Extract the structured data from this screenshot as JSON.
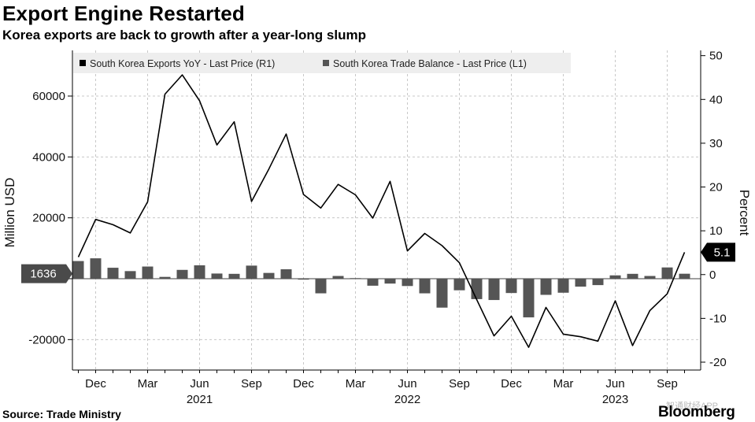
{
  "title": "Export Engine Restarted",
  "subtitle": "Korea exports are back to growth after a year-long slump",
  "source": "Source: Trade Ministry",
  "brand": "Bloomberg",
  "watermark": "智通财经APP",
  "chart_data": {
    "type": "bar+line",
    "title": "Export Engine Restarted",
    "subtitle": "Korea exports are back to growth after a year-long slump",
    "months": [
      "2020-11",
      "2020-12",
      "2021-01",
      "2021-02",
      "2021-03",
      "2021-04",
      "2021-05",
      "2021-06",
      "2021-07",
      "2021-08",
      "2021-09",
      "2021-10",
      "2021-11",
      "2021-12",
      "2022-01",
      "2022-02",
      "2022-03",
      "2022-04",
      "2022-05",
      "2022-06",
      "2022-07",
      "2022-08",
      "2022-09",
      "2022-10",
      "2022-11",
      "2022-12",
      "2023-01",
      "2023-02",
      "2023-03",
      "2023-04",
      "2023-05",
      "2023-06",
      "2023-07",
      "2023-08",
      "2023-09",
      "2023-10"
    ],
    "x_tick_labels": [
      {
        "month": "2020-12",
        "label": "Dec"
      },
      {
        "month": "2021-03",
        "label": "Mar"
      },
      {
        "month": "2021-06",
        "label": "Jun"
      },
      {
        "month": "2021-09",
        "label": "Sep"
      },
      {
        "month": "2021-12",
        "label": "Dec"
      },
      {
        "month": "2022-03",
        "label": "Mar"
      },
      {
        "month": "2022-06",
        "label": "Jun"
      },
      {
        "month": "2022-09",
        "label": "Sep"
      },
      {
        "month": "2022-12",
        "label": "Dec"
      },
      {
        "month": "2023-03",
        "label": "Mar"
      },
      {
        "month": "2023-06",
        "label": "Jun"
      },
      {
        "month": "2023-09",
        "label": "Sep"
      }
    ],
    "year_labels": [
      {
        "month": "2021-06",
        "label": "2021"
      },
      {
        "month": "2022-06",
        "label": "2022"
      },
      {
        "month": "2023-06",
        "label": "2023"
      }
    ],
    "left_axis": {
      "label": "Million USD",
      "range": [
        -30000,
        75000
      ],
      "ticks": [
        -20000,
        0,
        20000,
        40000,
        60000
      ],
      "tick_labels": [
        "-20000",
        "0",
        "20000",
        "40000",
        "60000"
      ]
    },
    "right_axis": {
      "label": "Percent",
      "range": [
        -21.8,
        51.2
      ],
      "ticks": [
        -20,
        -10,
        0,
        10,
        20,
        30,
        40,
        50
      ],
      "tick_labels": [
        "-20",
        "-10",
        "0",
        "10",
        "20",
        "30",
        "40",
        "50"
      ]
    },
    "series": [
      {
        "name": "South Korea Exports YoY - Last Price (R1)",
        "type": "line",
        "axis": "right",
        "color": "#000000",
        "values": [
          4,
          12.6,
          11.4,
          9.5,
          16.6,
          41.2,
          45.6,
          39.7,
          29.6,
          34.9,
          16.7,
          24.1,
          32.1,
          18.3,
          15.2,
          20.6,
          18.2,
          12.9,
          21.3,
          5.4,
          9.4,
          6.6,
          2.7,
          -5.7,
          -14.0,
          -9.5,
          -16.6,
          -7.5,
          -13.6,
          -14.2,
          -15.2,
          -6.0,
          -16.2,
          -8.2,
          -4.4,
          5.1
        ]
      },
      {
        "name": "South Korea Trade Balance - Last Price (L1)",
        "type": "bar",
        "axis": "left",
        "color": "#555555",
        "values": [
          5800,
          6700,
          3600,
          2500,
          4000,
          600,
          2900,
          4400,
          1700,
          1600,
          4300,
          1900,
          3100,
          -300,
          -4800,
          900,
          200,
          -2300,
          -1600,
          -2400,
          -4800,
          -9500,
          -3800,
          -6700,
          -7000,
          -4700,
          -12700,
          -5300,
          -4600,
          -2600,
          -2100,
          1100,
          1600,
          900,
          3700,
          1636
        ]
      }
    ],
    "last_value_labels": {
      "left": "1636",
      "right": "5.1"
    },
    "legend": {
      "position": "top-left"
    }
  }
}
